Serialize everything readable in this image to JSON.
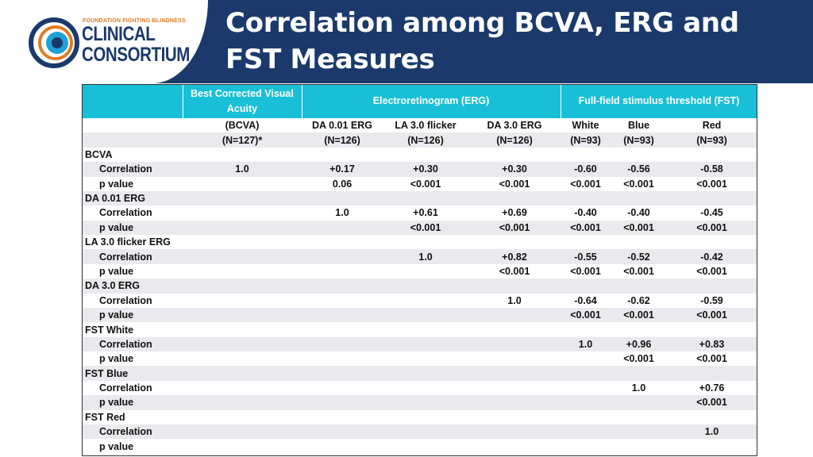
{
  "slide": {
    "title_line1": "Correlation among BCVA, ERG and",
    "title_line2": "FST Measures"
  },
  "logo": {
    "small_text": "FOUNDATION FIGHTING BLINDNESS",
    "line1": "CLINICAL",
    "line2": "CONSORTIUM"
  },
  "colors": {
    "header_band": "#1b3a6b",
    "table_header": "#19bfd6",
    "row_shade": "#e9e9ee",
    "logo_orange": "#e07a23"
  },
  "table": {
    "group_headers": {
      "bcva": [
        "Best Corrected Visual",
        "Acuity"
      ],
      "erg": "Electroretinogram (ERG)",
      "fst": "Full-field stimulus threshold (FST)"
    },
    "subheader_row1": [
      "",
      "(BCVA)",
      "DA 0.01 ERG",
      "LA 3.0 flicker",
      "DA 3.0 ERG",
      "White",
      "Blue",
      "Red"
    ],
    "subheader_row2": [
      "",
      "(N=127)*",
      "(N=126)",
      "(N=126)",
      "(N=126)",
      "(N=93)",
      "(N=93)",
      "(N=93)"
    ],
    "rows": [
      {
        "kind": "group",
        "label": "BCVA"
      },
      {
        "kind": "data",
        "label": "Correlation",
        "values": [
          "1.0",
          "+0.17",
          "+0.30",
          "+0.30",
          "-0.60",
          "-0.56",
          "-0.58"
        ]
      },
      {
        "kind": "data",
        "label": "p value",
        "values": [
          "",
          "0.06",
          "<0.001",
          "<0.001",
          "<0.001",
          "<0.001",
          "<0.001"
        ]
      },
      {
        "kind": "group",
        "label": "DA 0.01 ERG"
      },
      {
        "kind": "data",
        "label": "Correlation",
        "values": [
          "",
          "1.0",
          "+0.61",
          "+0.69",
          "-0.40",
          "-0.40",
          "-0.45"
        ]
      },
      {
        "kind": "data",
        "label": "p value",
        "values": [
          "",
          "",
          "<0.001",
          "<0.001",
          "<0.001",
          "<0.001",
          "<0.001"
        ]
      },
      {
        "kind": "group",
        "label": "LA 3.0 flicker ERG"
      },
      {
        "kind": "data",
        "label": "Correlation",
        "values": [
          "",
          "",
          "1.0",
          "+0.82",
          "-0.55",
          "-0.52",
          "-0.42"
        ]
      },
      {
        "kind": "data",
        "label": "p value",
        "values": [
          "",
          "",
          "",
          "<0.001",
          "<0.001",
          "<0.001",
          "<0.001"
        ]
      },
      {
        "kind": "group",
        "label": "DA 3.0 ERG"
      },
      {
        "kind": "data",
        "label": "Correlation",
        "values": [
          "",
          "",
          "",
          "1.0",
          "-0.64",
          "-0.62",
          "-0.59"
        ]
      },
      {
        "kind": "data",
        "label": "p value",
        "values": [
          "",
          "",
          "",
          "",
          "<0.001",
          "<0.001",
          "<0.001"
        ]
      },
      {
        "kind": "group",
        "label": "FST White"
      },
      {
        "kind": "data",
        "label": "Correlation",
        "values": [
          "",
          "",
          "",
          "",
          "1.0",
          "+0.96",
          "+0.83"
        ]
      },
      {
        "kind": "data",
        "label": "p value",
        "values": [
          "",
          "",
          "",
          "",
          "",
          "<0.001",
          "<0.001"
        ]
      },
      {
        "kind": "group",
        "label": "FST Blue"
      },
      {
        "kind": "data",
        "label": "Correlation",
        "values": [
          "",
          "",
          "",
          "",
          "",
          "1.0",
          "+0.76"
        ]
      },
      {
        "kind": "data",
        "label": "p value",
        "values": [
          "",
          "",
          "",
          "",
          "",
          "",
          "<0.001"
        ]
      },
      {
        "kind": "group",
        "label": "FST Red"
      },
      {
        "kind": "data",
        "label": "Correlation",
        "values": [
          "",
          "",
          "",
          "",
          "",
          "",
          "1.0"
        ]
      },
      {
        "kind": "data",
        "label": "p value",
        "values": [
          "",
          "",
          "",
          "",
          "",
          "",
          ""
        ]
      }
    ]
  }
}
